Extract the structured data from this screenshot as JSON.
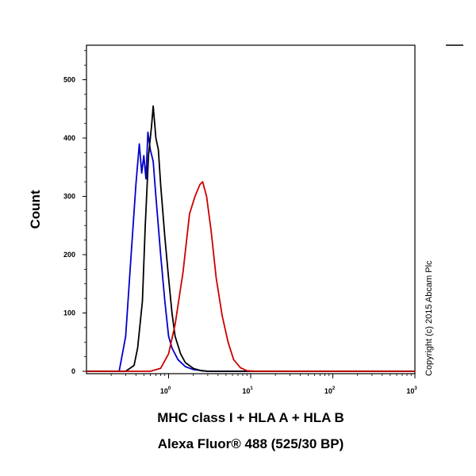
{
  "chart_data": {
    "type": "line",
    "ylabel": "Count",
    "xlabel_line1": "MHC class I + HLA A + HLA B",
    "xlabel_line2": "Alexa Fluor® 488 (525/30 BP)",
    "x_scale": "log",
    "xlim": [
      0.1,
      1000
    ],
    "ylim": [
      0,
      560
    ],
    "x_ticks": [
      {
        "value": 1,
        "base": "10",
        "exp": "0"
      },
      {
        "value": 10,
        "base": "10",
        "exp": "1"
      },
      {
        "value": 100,
        "base": "10",
        "exp": "2"
      },
      {
        "value": 1000,
        "base": "10",
        "exp": "3"
      }
    ],
    "y_ticks": [
      0,
      100,
      200,
      300,
      400,
      500
    ],
    "legend": "none",
    "grid": false,
    "copyright": "Copyright (c) 2015 Abcam Plc",
    "series": [
      {
        "color": "#0000cc",
        "x": [
          0.1,
          0.25,
          0.3,
          0.35,
          0.4,
          0.44,
          0.47,
          0.5,
          0.53,
          0.56,
          0.6,
          0.65,
          0.7,
          0.8,
          0.9,
          1.0,
          1.1,
          1.3,
          1.6,
          2.0,
          3.0,
          10,
          1000
        ],
        "y": [
          0,
          0,
          60,
          200,
          320,
          390,
          340,
          370,
          330,
          410,
          380,
          360,
          300,
          200,
          120,
          60,
          40,
          20,
          8,
          3,
          0,
          0,
          0
        ]
      },
      {
        "color": "#000000",
        "x": [
          0.1,
          0.3,
          0.38,
          0.42,
          0.48,
          0.52,
          0.57,
          0.62,
          0.65,
          0.7,
          0.75,
          0.8,
          0.9,
          1.0,
          1.1,
          1.2,
          1.4,
          1.6,
          2.0,
          2.5,
          3.0,
          10,
          1000
        ],
        "y": [
          0,
          0,
          10,
          40,
          120,
          250,
          370,
          420,
          455,
          400,
          380,
          320,
          230,
          160,
          100,
          60,
          30,
          15,
          5,
          1,
          0,
          0,
          0
        ]
      },
      {
        "color": "#cc0000",
        "x": [
          0.1,
          0.6,
          0.8,
          1.0,
          1.2,
          1.5,
          1.8,
          2.1,
          2.4,
          2.6,
          2.9,
          3.3,
          3.8,
          4.5,
          5.3,
          6.2,
          7.5,
          9.0,
          12,
          1000
        ],
        "y": [
          0,
          0,
          5,
          30,
          80,
          170,
          270,
          300,
          320,
          325,
          300,
          240,
          160,
          95,
          50,
          20,
          6,
          1,
          0,
          0
        ]
      }
    ]
  }
}
